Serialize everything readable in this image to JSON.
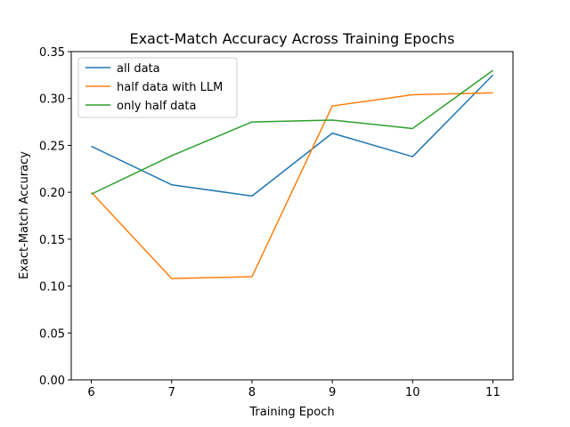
{
  "chart_data": {
    "type": "line",
    "title": "Exact-Match Accuracy Across Training Epochs",
    "xlabel": "Training Epoch",
    "ylabel": "Exact-Match Accuracy",
    "x": [
      6,
      7,
      8,
      9,
      10,
      11
    ],
    "xlim": [
      5.75,
      11.25
    ],
    "ylim": [
      0.0,
      0.35
    ],
    "xticks": [
      6,
      7,
      8,
      9,
      10,
      11
    ],
    "yticks": [
      "0.00",
      "0.05",
      "0.10",
      "0.15",
      "0.20",
      "0.25",
      "0.30",
      "0.35"
    ],
    "grid": false,
    "legend_position": "top-left",
    "series": [
      {
        "name": "all data",
        "color": "#1f77b4",
        "values": [
          0.249,
          0.208,
          0.196,
          0.263,
          0.238,
          0.325
        ]
      },
      {
        "name": "half data with LLM",
        "color": "#ff7f0e",
        "values": [
          0.2,
          0.108,
          0.11,
          0.292,
          0.304,
          0.306
        ]
      },
      {
        "name": "only half data",
        "color": "#2ca02c",
        "values": [
          0.198,
          0.239,
          0.275,
          0.277,
          0.268,
          0.33
        ]
      }
    ]
  }
}
